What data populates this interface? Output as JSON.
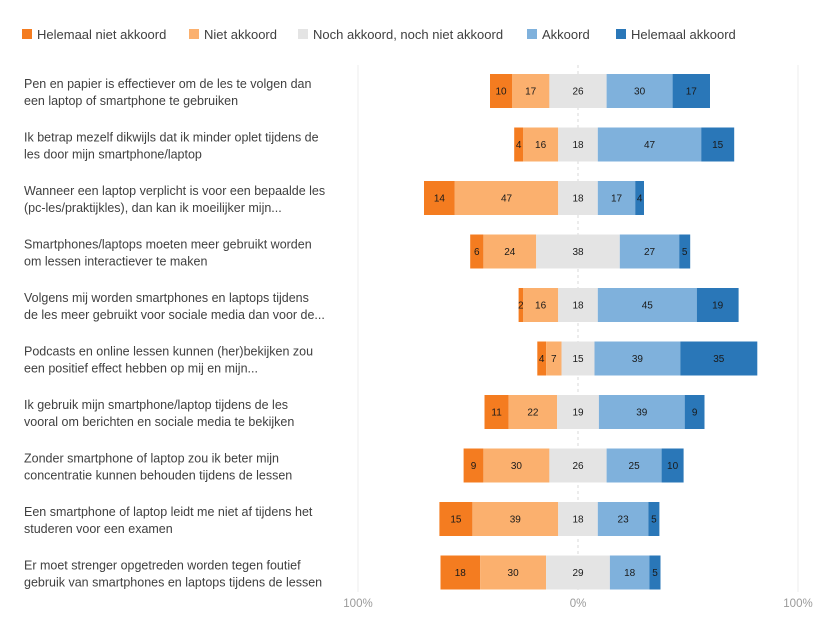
{
  "chart_data": {
    "type": "bar",
    "orientation": "horizontal",
    "stacking": "diverging",
    "legend_position": "top",
    "grid": false,
    "xlim": [
      -100,
      100
    ],
    "x_ticks": [
      "100%",
      "0%",
      "100%"
    ],
    "categories": [
      [
        "Pen en papier is effectiever om de les te volgen dan",
        "een laptop of smartphone te gebruiken"
      ],
      [
        "Ik betrap mezelf dikwijls dat ik minder oplet tijdens de",
        "les door mijn smartphone/laptop"
      ],
      [
        "Wanneer een laptop verplicht is voor een bepaalde les",
        "(pc-les/praktijkles), dan kan ik moeilijker mijn..."
      ],
      [
        "Smartphones/laptops moeten meer gebruikt worden",
        "om lessen interactiever te maken"
      ],
      [
        "Volgens mij worden smartphones en laptops tijdens",
        "de les meer gebruikt voor sociale media dan voor de..."
      ],
      [
        "Podcasts en online lessen kunnen (her)bekijken zou",
        "een positief effect hebben op mij en mijn..."
      ],
      [
        "Ik gebruik mijn smartphone/laptop tijdens de les",
        "vooral om berichten en sociale media te bekijken"
      ],
      [
        "Zonder smartphone of laptop zou ik beter mijn",
        "concentratie kunnen behouden tijdens de lessen"
      ],
      [
        "Een smartphone of laptop leidt me niet af tijdens het",
        "studeren voor een examen"
      ],
      [
        "Er moet strenger opgetreden worden tegen foutief",
        "gebruik van smartphones en laptops tijdens de lessen"
      ]
    ],
    "series": [
      {
        "name": "Helemaal niet akkoord",
        "color": "#f47c20",
        "values": [
          10,
          4,
          14,
          6,
          2,
          4,
          11,
          9,
          15,
          18
        ]
      },
      {
        "name": "Niet akkoord",
        "color": "#fbb06e",
        "values": [
          17,
          16,
          47,
          24,
          16,
          7,
          22,
          30,
          39,
          30
        ]
      },
      {
        "name": "Noch akkoord, noch niet akkoord",
        "color": "#e4e4e4",
        "values": [
          26,
          18,
          18,
          38,
          18,
          15,
          19,
          26,
          18,
          29
        ]
      },
      {
        "name": "Akkoord",
        "color": "#7fb1dc",
        "values": [
          30,
          47,
          17,
          27,
          45,
          39,
          39,
          25,
          23,
          18
        ]
      },
      {
        "name": "Helemaal akkoord",
        "color": "#2a77b8",
        "values": [
          17,
          15,
          4,
          5,
          19,
          35,
          9,
          10,
          5,
          5
        ]
      }
    ]
  }
}
